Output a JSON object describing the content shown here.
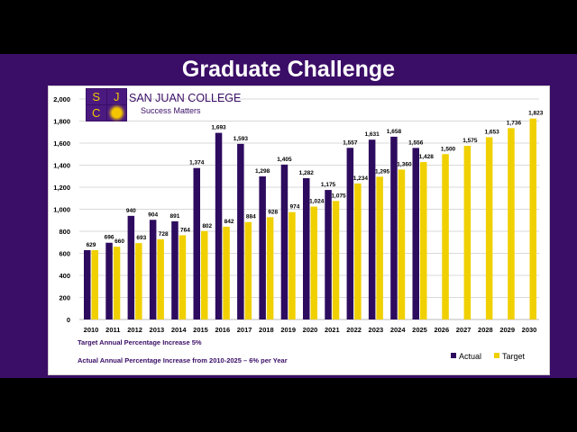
{
  "slide_title": "Graduate Challenge",
  "logo": {
    "letters": [
      "S",
      "J",
      "C"
    ],
    "name": "SAN JUAN COLLEGE",
    "tagline": "Success Matters"
  },
  "notes": [
    "Target Annual Percentage Increase 5%",
    "Actual Annual Percentage Increase from 2010-2025 – 6% per Year"
  ],
  "colors": {
    "background": "#3a0d66",
    "actual": "#2d0b5e",
    "target": "#f0d000"
  },
  "chart_data": {
    "type": "bar",
    "categories": [
      "2010",
      "2011",
      "2012",
      "2013",
      "2014",
      "2015",
      "2016",
      "2017",
      "2018",
      "2019",
      "2020",
      "2021",
      "2022",
      "2023",
      "2024",
      "2025",
      "2026",
      "2027",
      "2028",
      "2029",
      "2030"
    ],
    "series": [
      {
        "name": "Actual",
        "values": [
          629,
          696,
          940,
          904,
          891,
          1374,
          1693,
          1593,
          1298,
          1405,
          1282,
          1175,
          1557,
          1631,
          1658,
          1556,
          null,
          null,
          null,
          null,
          null
        ]
      },
      {
        "name": "Target",
        "values": [
          629,
          660,
          693,
          728,
          764,
          802,
          842,
          884,
          928,
          974,
          1024,
          1075,
          1234,
          1295,
          1360,
          1428,
          1500,
          1575,
          1653,
          1736,
          1823
        ]
      }
    ],
    "ylim": [
      0,
      2000
    ],
    "yticks": [
      "0",
      "200",
      "400",
      "600",
      "800",
      "1,000",
      "1,200",
      "1,400",
      "1,600",
      "1,800",
      "2,000"
    ],
    "grid": true,
    "legend": "bottom-right"
  }
}
